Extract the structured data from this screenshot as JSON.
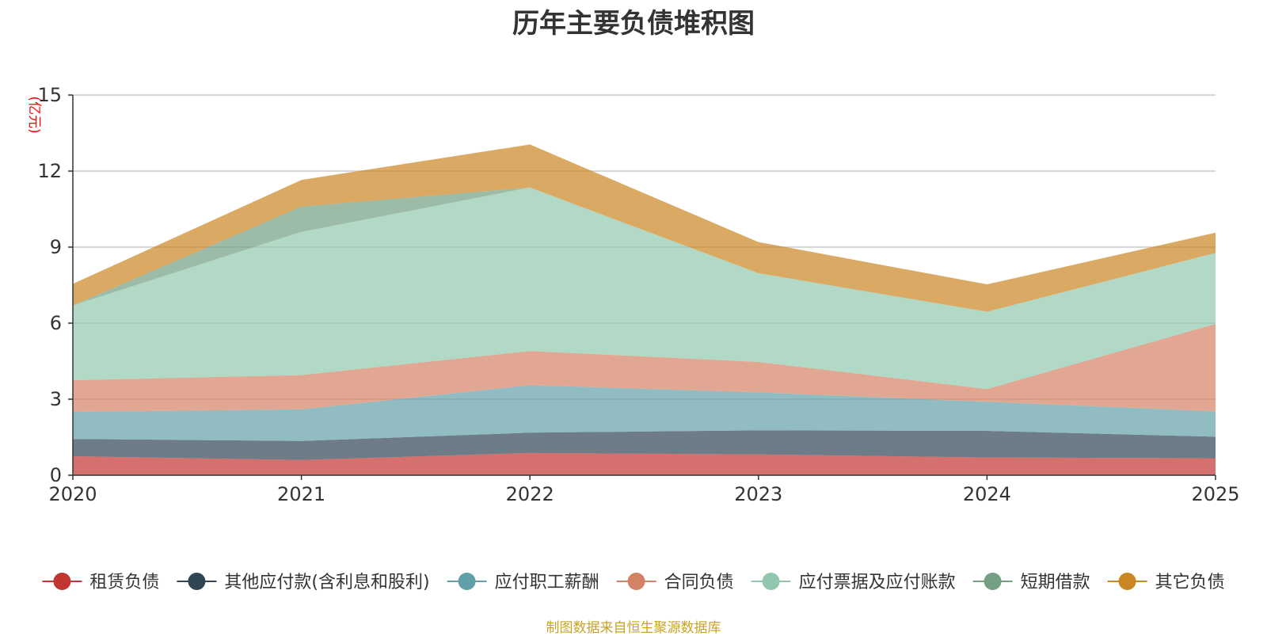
{
  "chart_data": {
    "type": "area",
    "stacked": true,
    "title": "历年主要负债堆积图",
    "ylabel": "(亿元)",
    "xlabel": "",
    "categories": [
      "2020",
      "2021",
      "2022",
      "2023",
      "2024",
      "2025"
    ],
    "y_ticks": [
      "0",
      "3",
      "6",
      "9",
      "12",
      "15"
    ],
    "ylim": [
      0,
      15
    ],
    "grid": true,
    "legend_position": "bottom",
    "series": [
      {
        "name": "租赁负债",
        "color": "#c23531",
        "values": [
          0.75,
          0.6,
          0.88,
          0.82,
          0.7,
          0.67
        ]
      },
      {
        "name": "其他应付款(含利息和股利)",
        "color": "#2f4554",
        "values": [
          0.68,
          0.75,
          0.8,
          0.95,
          1.05,
          0.85
        ]
      },
      {
        "name": "应付职工薪酬",
        "color": "#61a0a8",
        "values": [
          1.07,
          1.25,
          1.87,
          1.5,
          1.15,
          1.0
        ]
      },
      {
        "name": "合同负债",
        "color": "#d48265",
        "values": [
          1.25,
          1.35,
          1.35,
          1.2,
          0.5,
          3.45
        ]
      },
      {
        "name": "应付票据及应付账款",
        "color": "#91c7ae",
        "values": [
          2.95,
          5.65,
          6.45,
          3.5,
          3.05,
          2.8
        ]
      },
      {
        "name": "短期借款",
        "color": "#749f83",
        "values": [
          0.0,
          1.0,
          0.0,
          0.0,
          0.0,
          0.0
        ]
      },
      {
        "name": "其它负债",
        "color": "#ca8622",
        "values": [
          0.85,
          1.05,
          1.7,
          1.23,
          1.08,
          0.8
        ]
      }
    ],
    "unit_color": "#ff0000"
  },
  "source_note": "制图数据来自恒生聚源数据库",
  "source_color": "#c9a227"
}
